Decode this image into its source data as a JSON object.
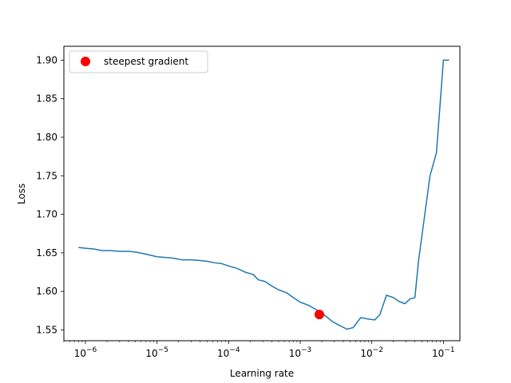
{
  "chart_data": {
    "type": "line",
    "title": "",
    "xlabel": "Learning rate",
    "ylabel": "Loss",
    "xscale": "log",
    "xlim": [
      5e-07,
      0.17
    ],
    "ylim": [
      1.536,
      1.918
    ],
    "x_ticks": [
      {
        "value": 1e-06,
        "base": "10",
        "exp": "−6"
      },
      {
        "value": 1e-05,
        "base": "10",
        "exp": "−5"
      },
      {
        "value": 0.0001,
        "base": "10",
        "exp": "−4"
      },
      {
        "value": 0.001,
        "base": "10",
        "exp": "−3"
      },
      {
        "value": 0.01,
        "base": "10",
        "exp": "−2"
      },
      {
        "value": 0.1,
        "base": "10",
        "exp": "−1"
      }
    ],
    "y_ticks": [
      "1.55",
      "1.60",
      "1.65",
      "1.70",
      "1.75",
      "1.80",
      "1.85",
      "1.90"
    ],
    "grid": false,
    "legend_position": "top-left",
    "series": [
      {
        "color": "#1f77b4",
        "x": [
          8e-07,
          1e-06,
          1.3e-06,
          1.7e-06,
          2.2e-06,
          3e-06,
          4e-06,
          5e-06,
          6.5e-06,
          8e-06,
          1e-05,
          1.3e-05,
          1.7e-05,
          2.2e-05,
          2.5e-05,
          3e-05,
          4e-05,
          5e-05,
          6.5e-05,
          8e-05,
          0.0001,
          0.00013,
          0.00017,
          0.00022,
          0.00026,
          0.00032,
          0.0004,
          0.0005,
          0.00065,
          0.0008,
          0.001,
          0.0013,
          0.0017,
          0.0022,
          0.0028,
          0.0035,
          0.0045,
          0.0055,
          0.007,
          0.009,
          0.011,
          0.013,
          0.016,
          0.02,
          0.024,
          0.029,
          0.034,
          0.04,
          0.045,
          0.055,
          0.065,
          0.08,
          0.1,
          0.12
        ],
        "y": [
          1.657,
          1.656,
          1.655,
          1.653,
          1.653,
          1.652,
          1.652,
          1.651,
          1.649,
          1.647,
          1.645,
          1.644,
          1.643,
          1.641,
          1.641,
          1.641,
          1.64,
          1.639,
          1.637,
          1.636,
          1.633,
          1.63,
          1.625,
          1.622,
          1.615,
          1.613,
          1.607,
          1.602,
          1.598,
          1.592,
          1.586,
          1.582,
          1.576,
          1.569,
          1.561,
          1.556,
          1.551,
          1.553,
          1.566,
          1.564,
          1.563,
          1.57,
          1.595,
          1.592,
          1.587,
          1.584,
          1.59,
          1.592,
          1.64,
          1.7,
          1.75,
          1.78,
          1.9,
          1.9
        ]
      }
    ],
    "marker": {
      "label": "steepest gradient",
      "x": 0.00185,
      "y": 1.57,
      "color": "#ff0000"
    }
  }
}
